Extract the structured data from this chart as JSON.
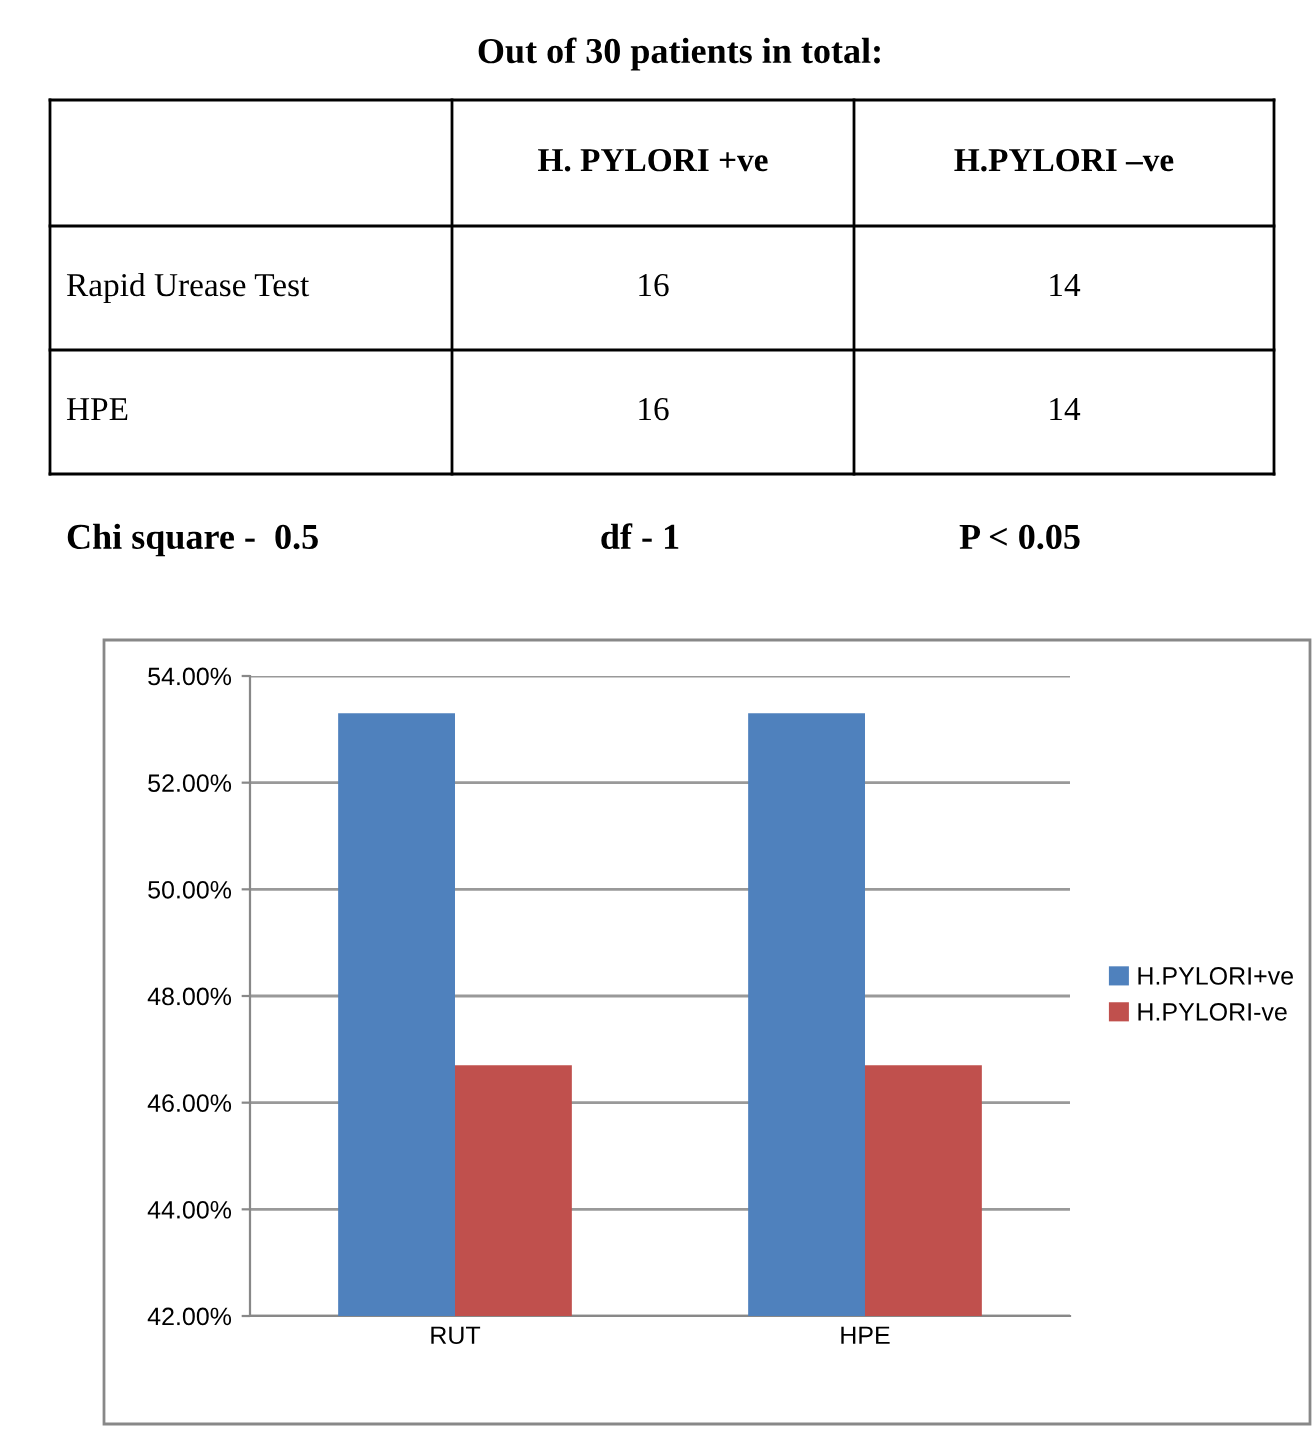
{
  "chart_data": {
    "type": "bar",
    "title": "Out of 30 patients in total:",
    "annotations": [
      "H. PYLORI +ve",
      "H.PYLORI –ve",
      "Rapid Urease Test",
      "16",
      "14",
      "HPE",
      "16",
      "14",
      "Chi square -  0.5",
      "df - 1",
      "P < 0.05"
    ],
    "categories": [
      "RUT",
      "HPE"
    ],
    "series": [
      {
        "name": "H.PYLORI+ve",
        "color": "#4f81bd",
        "values": [
          53.3,
          53.3
        ]
      },
      {
        "name": "H.PYLORI-ve",
        "color": "#c0504d",
        "values": [
          46.7,
          46.7
        ]
      }
    ],
    "ylim": [
      42,
      54
    ],
    "yticks": [
      {
        "value": 42,
        "label": "42.00%"
      },
      {
        "value": 44,
        "label": "44.00%"
      },
      {
        "value": 46,
        "label": "46.00%"
      },
      {
        "value": 48,
        "label": "48.00%"
      },
      {
        "value": 50,
        "label": "50.00%"
      },
      {
        "value": 52,
        "label": "52.00%"
      },
      {
        "value": 54,
        "label": "54.00%"
      }
    ],
    "grid": "y",
    "legend": "right"
  }
}
